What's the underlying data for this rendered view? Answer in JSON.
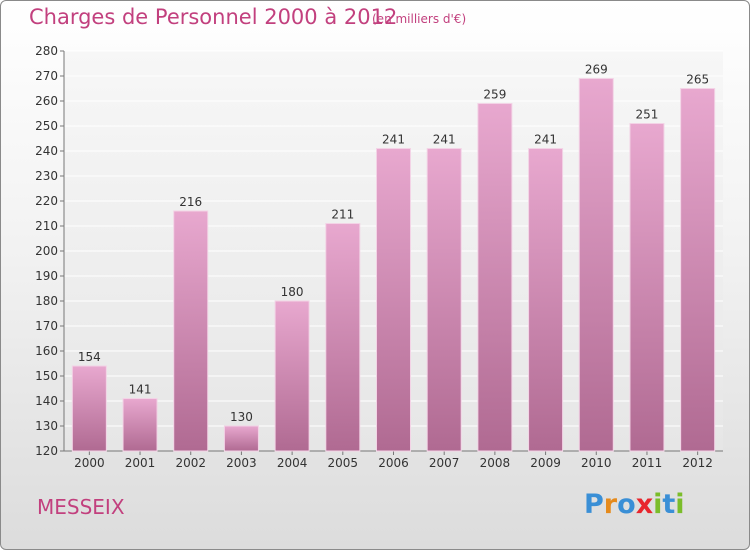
{
  "header": {
    "title": "Charges de Personnel 2000 à 2012",
    "subtitle": "(en milliers d'€)"
  },
  "footer": {
    "location": "MESSEIX",
    "logo": {
      "text": "Proxiti",
      "letters": [
        {
          "char": "P",
          "color": "#3a8fd6"
        },
        {
          "char": "r",
          "color": "#e58a1c"
        },
        {
          "char": "o",
          "color": "#3a8fd6"
        },
        {
          "char": "x",
          "color": "#e8262d"
        },
        {
          "char": "i",
          "color": "#7bbd2a"
        },
        {
          "char": "t",
          "color": "#3a8fd6"
        },
        {
          "char": "i",
          "color": "#7bbd2a"
        }
      ]
    }
  },
  "colors": {
    "bar_top": "#e8a8cf",
    "bar_bottom": "#b06a92",
    "accent": "#c2407e"
  },
  "chart_data": {
    "type": "bar",
    "title": "Charges de Personnel 2000 à 2012",
    "subtitle": "(en milliers d'€)",
    "categories": [
      "2000",
      "2001",
      "2002",
      "2003",
      "2004",
      "2005",
      "2006",
      "2007",
      "2008",
      "2009",
      "2010",
      "2011",
      "2012"
    ],
    "values": [
      154,
      141,
      216,
      130,
      180,
      211,
      241,
      241,
      259,
      241,
      269,
      251,
      265
    ],
    "ylim": [
      120,
      280
    ],
    "yticks": [
      120,
      130,
      140,
      150,
      160,
      170,
      180,
      190,
      200,
      210,
      220,
      230,
      240,
      250,
      260,
      270,
      280
    ],
    "grid": true,
    "data_labels": true
  }
}
